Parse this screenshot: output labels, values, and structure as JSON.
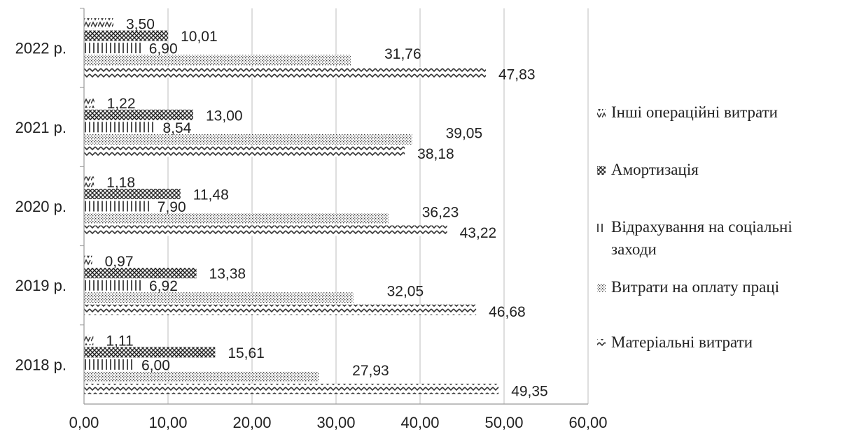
{
  "chart_data": {
    "type": "bar",
    "orientation": "horizontal",
    "categories": [
      "2018 р.",
      "2019 р.",
      "2020 р.",
      "2021 р.",
      "2022 р."
    ],
    "series": [
      {
        "name": "Матеріальні витрати",
        "values": [
          49.35,
          46.68,
          43.22,
          38.18,
          47.83
        ],
        "labels": [
          "49,35",
          "46,68",
          "43,22",
          "38,18",
          "47,83"
        ],
        "pattern": "zigzag"
      },
      {
        "name": "Витрати на оплату праці",
        "values": [
          27.93,
          32.05,
          36.23,
          39.05,
          31.76
        ],
        "labels": [
          "27,93",
          "32,05",
          "36,23",
          "39,05",
          "31,76"
        ],
        "pattern": "dots"
      },
      {
        "name": "Відрахування на соціальні заходи",
        "values": [
          6.0,
          6.92,
          7.9,
          8.54,
          6.9
        ],
        "labels": [
          "6,00",
          "6,92",
          "7,90",
          "8,54",
          "6,90"
        ],
        "pattern": "vlines"
      },
      {
        "name": "Амортизація",
        "values": [
          15.61,
          13.38,
          11.48,
          13.0,
          10.01
        ],
        "labels": [
          "15,61",
          "13,38",
          "11,48",
          "13,00",
          "10,01"
        ],
        "pattern": "crosshatch"
      },
      {
        "name": "Інші операційні витрати",
        "values": [
          1.11,
          0.97,
          1.18,
          1.22,
          3.5
        ],
        "labels": [
          "1,11",
          "0,97",
          "1,18",
          "1,22",
          "3,50"
        ],
        "pattern": "diagzigzag"
      }
    ],
    "xlim": [
      0,
      60
    ],
    "xticks": [
      0,
      10,
      20,
      30,
      40,
      50,
      60
    ],
    "xtick_labels": [
      "0,00",
      "10,00",
      "20,00",
      "30,00",
      "40,00",
      "50,00",
      "60,00"
    ],
    "grid": "vertical",
    "legend_position": "right",
    "legend_order": [
      "Інші операційні витрати",
      "Амортизація",
      "Відрахування на соціальні заходи",
      "Витрати на оплату праці",
      "Матеріальні витрати"
    ],
    "title": "",
    "xlabel": "",
    "ylabel": ""
  }
}
